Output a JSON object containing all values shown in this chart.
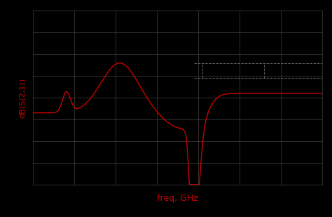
{
  "title": "",
  "xlabel": "freq, GHz",
  "ylabel": "dB(S(2,1))",
  "bg_color": "#000000",
  "line_color": "#cc0000",
  "xlabel_color": "#cc0000",
  "ylabel_color": "#cc0000",
  "grid_color": "#404040",
  "tick_color": "#000000",
  "dashedline_color": "#606060",
  "xlim": [
    0.5,
    4.0
  ],
  "ylim": [
    -50,
    30
  ],
  "yticks": [
    -40,
    -30,
    -20,
    -10,
    0,
    10,
    20
  ],
  "xticks": [
    1.0,
    1.5,
    2.0,
    2.5,
    3.0,
    3.5
  ],
  "figsize": [
    4.74,
    3.09
  ],
  "dpi": 100
}
